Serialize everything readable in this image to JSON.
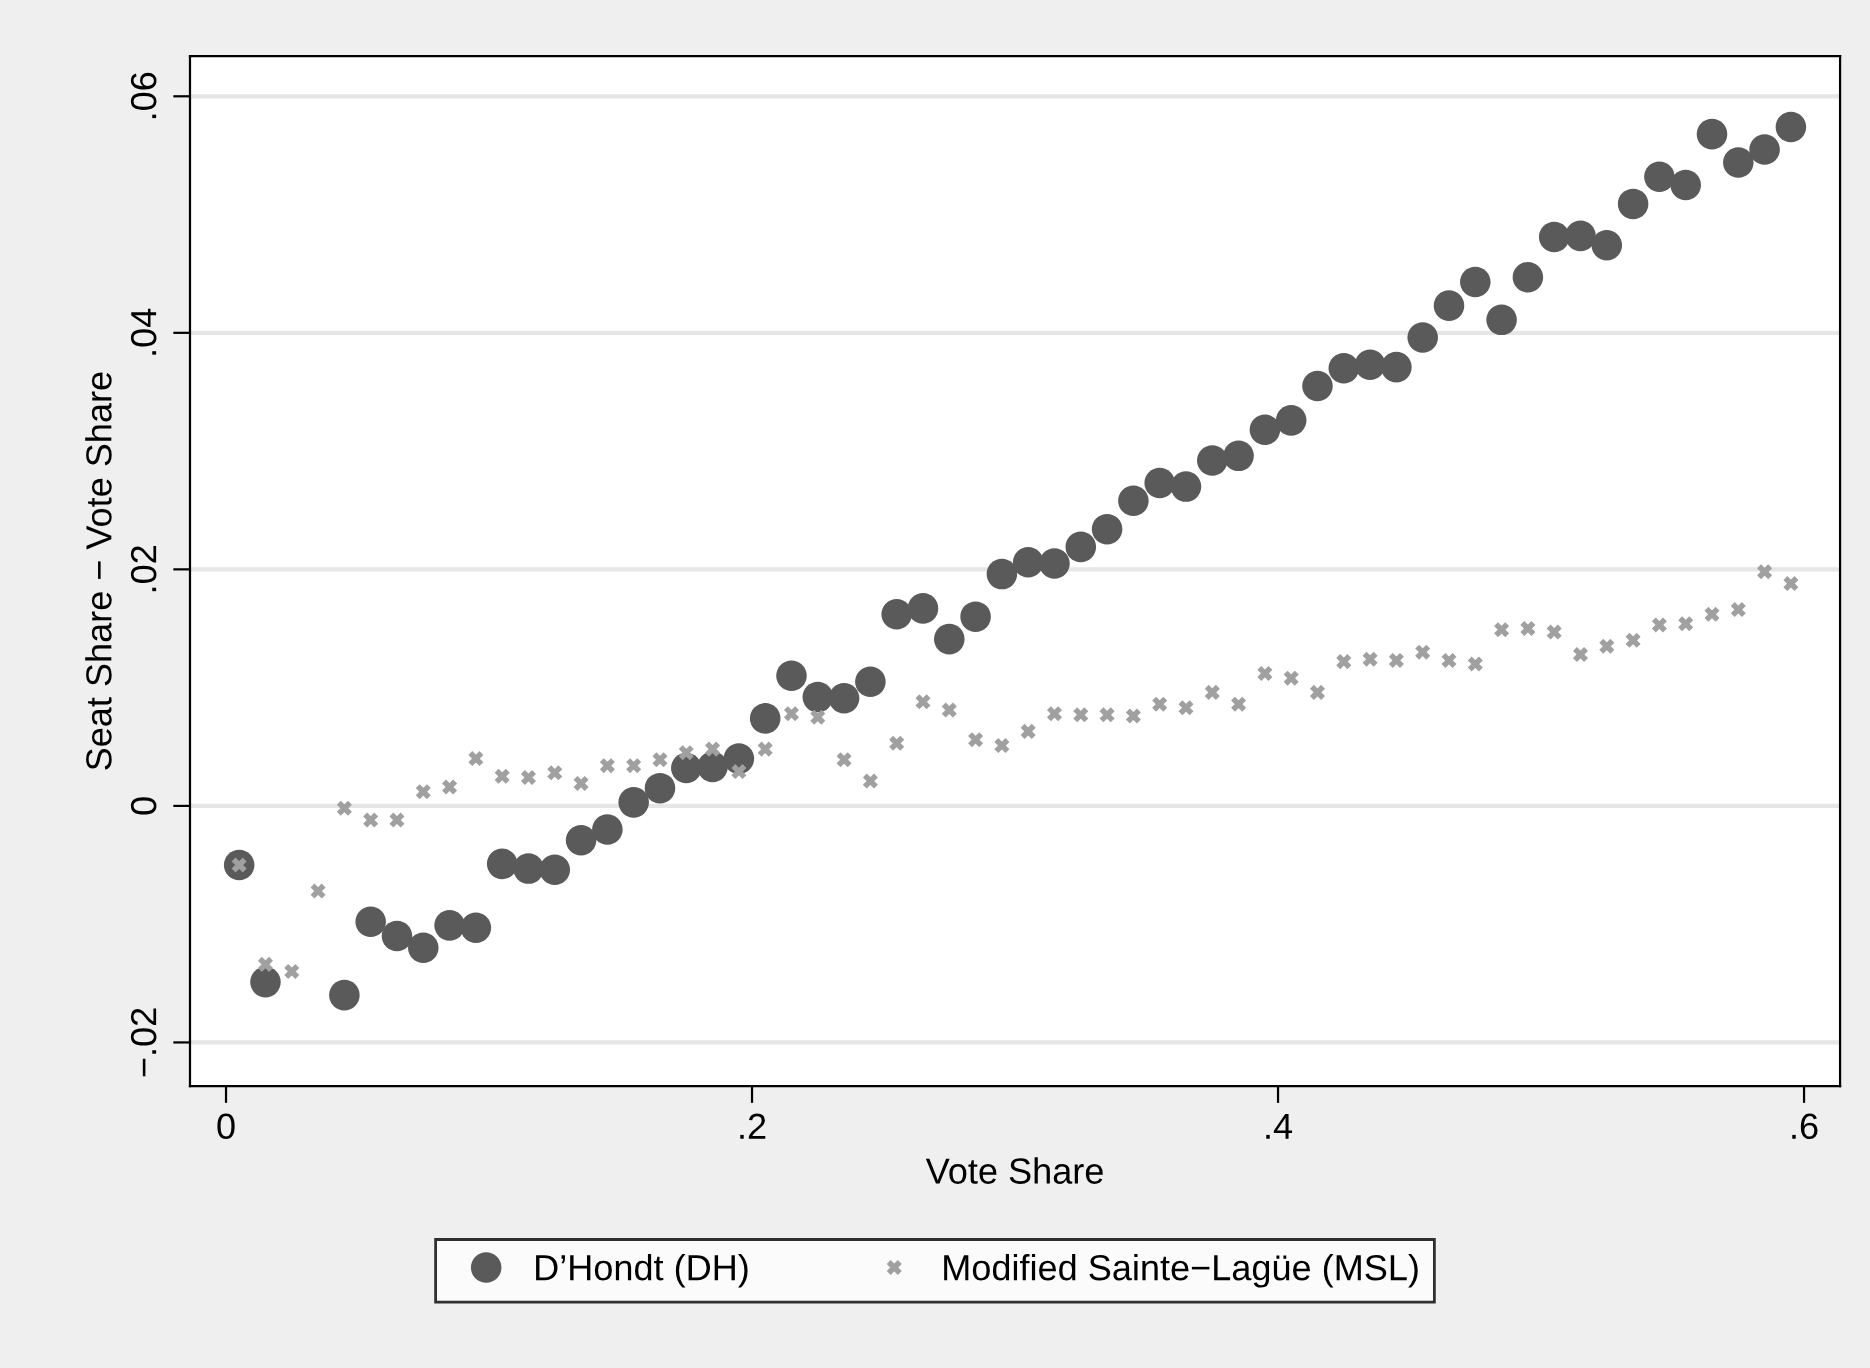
{
  "chart_data": {
    "type": "scatter",
    "xlabel": "Vote Share",
    "ylabel": "Seat Share − Vote Share",
    "x": [
      0.005,
      0.015,
      0.025,
      0.035,
      0.045,
      0.055,
      0.065,
      0.075,
      0.085,
      0.095,
      0.105,
      0.115,
      0.125,
      0.135,
      0.145,
      0.155,
      0.165,
      0.175,
      0.185,
      0.195,
      0.205,
      0.215,
      0.225,
      0.235,
      0.245,
      0.255,
      0.265,
      0.275,
      0.285,
      0.295,
      0.305,
      0.315,
      0.325,
      0.335,
      0.345,
      0.355,
      0.365,
      0.375,
      0.385,
      0.395,
      0.405,
      0.415,
      0.425,
      0.435,
      0.445,
      0.455,
      0.465,
      0.475,
      0.485,
      0.495,
      0.505,
      0.515,
      0.525,
      0.535,
      0.545,
      0.555,
      0.565,
      0.575,
      0.585,
      0.595
    ],
    "series": [
      {
        "name": "D’Hondt (DH)",
        "color": "#5a5a5a",
        "marker": "circle",
        "values": [
          -0.005,
          -0.0149,
          null,
          null,
          -0.016,
          -0.0098,
          -0.011,
          -0.012,
          -0.0101,
          -0.0103,
          -0.0049,
          -0.0053,
          -0.0054,
          -0.0029,
          -0.002,
          0.0003,
          0.0015,
          0.0032,
          0.0033,
          0.004,
          0.0074,
          0.011,
          0.0092,
          0.0091,
          0.0105,
          0.0162,
          0.0167,
          0.0141,
          0.016,
          0.0196,
          0.0206,
          0.0205,
          0.0219,
          0.0234,
          0.0258,
          0.0273,
          0.027,
          0.0292,
          0.0296,
          0.0318,
          0.0326,
          0.0355,
          0.037,
          0.0373,
          0.0371,
          0.0396,
          0.0423,
          0.0443,
          0.0411,
          0.0447,
          0.0481,
          0.0482,
          0.0474,
          0.0509,
          0.0532,
          0.0525,
          0.0568,
          0.0544,
          0.0555,
          0.0574
        ]
      },
      {
        "name": "Modified Sainte−Lagüe (MSL)",
        "color": "#a0a0a0",
        "marker": "cross",
        "values": [
          -0.005,
          -0.0134,
          -0.014,
          -0.0072,
          -0.0002,
          -0.0012,
          -0.0012,
          0.0012,
          0.0016,
          0.004,
          0.0025,
          0.0024,
          0.0028,
          0.0019,
          0.0034,
          0.0034,
          0.0039,
          0.0045,
          0.0048,
          0.0029,
          0.0048,
          0.0078,
          0.0075,
          0.0039,
          0.0021,
          0.0053,
          0.0088,
          0.0081,
          0.0056,
          0.0051,
          0.0063,
          0.0078,
          0.0077,
          0.0077,
          0.0076,
          0.0086,
          0.0083,
          0.0096,
          0.0086,
          0.0112,
          0.0108,
          0.0096,
          0.0122,
          0.0124,
          0.0123,
          0.013,
          0.0123,
          0.012,
          0.0149,
          0.015,
          0.0147,
          0.0128,
          0.0135,
          0.014,
          0.0153,
          0.0154,
          0.0162,
          0.0166,
          0.0198,
          0.0188
        ]
      }
    ],
    "xlim": [
      -0.0137,
      0.6137
    ],
    "ylim": [
      -0.0237,
      0.0634
    ],
    "xticks": [
      0,
      {
        "value": 0.2,
        "label": ".2"
      },
      {
        "value": 0.4,
        "label": ".4"
      },
      {
        "value": 0.6,
        "label": ".6"
      }
    ],
    "yticks": [
      {
        "value": -0.02,
        "label": "−.02"
      },
      0,
      {
        "value": 0.02,
        "label": ".02"
      },
      {
        "value": 0.04,
        "label": ".04"
      },
      {
        "value": 0.06,
        "label": ".06"
      }
    ],
    "grid": "y",
    "legend": "bottom"
  }
}
